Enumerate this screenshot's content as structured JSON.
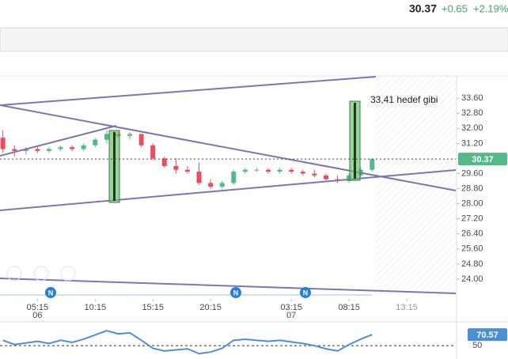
{
  "header": {
    "price": "30.37",
    "change": "+0.65",
    "percent": "+2.19%"
  },
  "chart_data": {
    "type": "candlestick",
    "annotation": "33,41 hedef gibi",
    "news_marker": "N",
    "x": [
      2.25,
      3.25,
      4.25,
      5.25,
      6.25,
      7.25,
      8.25,
      9.25,
      10.25,
      11.25,
      12.25,
      13.25,
      14.25,
      15.25,
      16.25,
      17.25,
      18.25,
      19.25,
      20.25,
      21.25,
      22.25,
      23.25,
      24.25,
      25.25,
      26.25,
      27.25,
      28.25,
      29.25,
      30.25,
      31.25,
      32.25,
      33.25,
      34.25
    ],
    "open": [
      31.5,
      30.9,
      30.8,
      30.9,
      30.8,
      30.9,
      31.0,
      30.9,
      31.1,
      31.4,
      31.7,
      31.6,
      31.7,
      31.1,
      30.4,
      30.0,
      29.8,
      29.7,
      29.1,
      28.9,
      29.1,
      29.7,
      29.8,
      29.8,
      29.7,
      29.8,
      29.7,
      29.6,
      29.5,
      29.3,
      29.2,
      29.5,
      29.8
    ],
    "high": [
      31.9,
      31.1,
      31.0,
      31.0,
      31.0,
      31.1,
      31.1,
      31.2,
      31.5,
      31.9,
      31.8,
      31.8,
      31.7,
      31.2,
      30.5,
      30.4,
      30.0,
      30.2,
      29.3,
      29.2,
      29.8,
      29.9,
      29.9,
      29.9,
      29.9,
      29.9,
      29.8,
      29.8,
      29.6,
      29.5,
      29.6,
      29.9,
      30.4
    ],
    "low": [
      30.7,
      30.5,
      30.6,
      30.7,
      30.7,
      30.8,
      30.8,
      30.8,
      31.0,
      31.2,
      31.5,
      31.4,
      31.0,
      30.3,
      29.9,
      29.6,
      29.6,
      29.0,
      28.8,
      28.8,
      29.0,
      29.6,
      29.7,
      29.6,
      29.6,
      29.6,
      29.5,
      29.4,
      29.2,
      29.1,
      29.1,
      29.4,
      29.7
    ],
    "close": [
      30.9,
      30.8,
      30.9,
      30.8,
      30.9,
      31.0,
      30.9,
      31.1,
      31.4,
      31.7,
      31.6,
      31.7,
      31.1,
      30.4,
      30.0,
      29.8,
      29.7,
      29.1,
      28.9,
      29.1,
      29.7,
      29.8,
      29.8,
      29.7,
      29.8,
      29.7,
      29.6,
      29.5,
      29.3,
      29.2,
      29.5,
      29.8,
      30.37
    ],
    "up_color": "#53b987",
    "down_color": "#eb4d5c",
    "last_price": 30.37,
    "xlim": [
      2,
      41.5
    ],
    "xticks": [
      {
        "value": 5.25,
        "label": "05:15"
      },
      {
        "value": 10.25,
        "label": "10:15"
      },
      {
        "value": 15.25,
        "label": "15:15"
      },
      {
        "value": 20.25,
        "label": "20:15"
      },
      {
        "value": 27.25,
        "label": "03:15"
      },
      {
        "value": 32.25,
        "label": "08:15"
      },
      {
        "value": 37.25,
        "label": "13:15"
      }
    ],
    "date_ticks": [
      {
        "value": 5.25,
        "label": "06"
      },
      {
        "value": 27.25,
        "label": "07"
      }
    ],
    "ylim": [
      23.2,
      34.74
    ],
    "yticks": [
      {
        "value": 33.6,
        "label": "33.60"
      },
      {
        "value": 32.8,
        "label": "32.80"
      },
      {
        "value": 32,
        "label": "32.00"
      },
      {
        "value": 31.2,
        "label": "31.20"
      },
      {
        "value": 30.4,
        "label": "30.40"
      },
      {
        "value": 29.6,
        "label": "29.60"
      },
      {
        "value": 28.8,
        "label": "28.80"
      },
      {
        "value": 28,
        "label": "28.00"
      },
      {
        "value": 27.2,
        "label": "27.20"
      },
      {
        "value": 26.4,
        "label": "26.40"
      },
      {
        "value": 25.6,
        "label": "25.60"
      },
      {
        "value": 24.8,
        "label": "24.80"
      },
      {
        "value": 24,
        "label": "24.00"
      }
    ],
    "rsi": {
      "color": "#4a90d9",
      "values": [
        60,
        52,
        55,
        58,
        54,
        60,
        56,
        62,
        70,
        78,
        72,
        74,
        60,
        45,
        40,
        42,
        44,
        35,
        38,
        45,
        60,
        62,
        60,
        58,
        60,
        57,
        54,
        50,
        44,
        40,
        52,
        62,
        70.57
      ],
      "ylim": [
        25,
        93
      ],
      "yticks": [
        50
      ]
    }
  }
}
